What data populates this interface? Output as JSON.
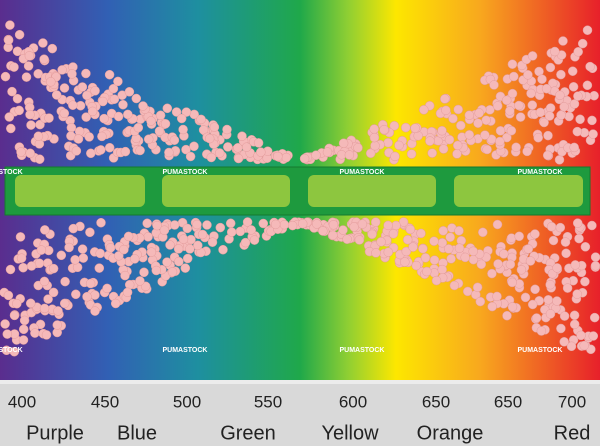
{
  "scale": {
    "wavelengths": [
      "400",
      "450",
      "500",
      "550",
      "600",
      "650",
      "650",
      "700"
    ],
    "colors": [
      "Purple",
      "Blue",
      "Green",
      "Yellow",
      "Orange",
      "Red"
    ]
  },
  "watermarks": [
    "ASTOCK",
    "PUMASTOCK",
    "PUMASTOCK",
    "PUMASTOCK",
    "ASTOCK",
    "PUMASTOCK",
    "PUMASTOCK",
    "PUMASTOCK"
  ]
}
